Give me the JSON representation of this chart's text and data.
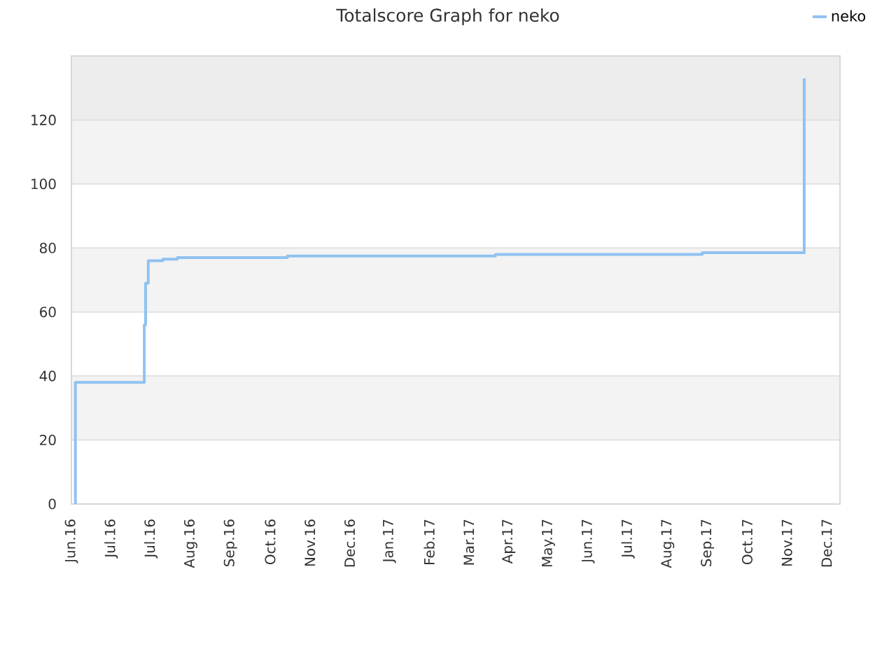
{
  "chart_data": {
    "type": "step",
    "title": "Totalscore Graph for neko",
    "x": [
      "2016-06-04",
      "2016-06-04",
      "2016-06-04",
      "2016-06-04",
      "2016-06-04",
      "2016-07-26",
      "2016-07-27",
      "2016-07-29",
      "2016-08-09",
      "2016-08-20",
      "2016-11-11",
      "2017-04-17",
      "2017-09-20",
      "2017-12-06"
    ],
    "series": [
      {
        "name": "neko",
        "color": "#90c2f0",
        "values": [
          0,
          11,
          19,
          27,
          38,
          56,
          69,
          76,
          76.5,
          77,
          77.5,
          78,
          78.5,
          133
        ]
      }
    ],
    "xlim": [
      "2016-06-01",
      "2018-01-02"
    ],
    "xticks": [
      {
        "value": "2016-06-01",
        "label": "Jun.16"
      },
      {
        "value": "2016-07-01",
        "label": "Jul.16"
      },
      {
        "value": "2016-07-31",
        "label": "Jul.16"
      },
      {
        "value": "2016-08-30",
        "label": "Aug.16"
      },
      {
        "value": "2016-09-29",
        "label": "Sep.16"
      },
      {
        "value": "2016-10-29",
        "label": "Oct.16"
      },
      {
        "value": "2016-11-28",
        "label": "Nov.16"
      },
      {
        "value": "2016-12-28",
        "label": "Dec.16"
      },
      {
        "value": "2017-01-27",
        "label": "Jan.17"
      },
      {
        "value": "2017-02-26",
        "label": "Feb.17"
      },
      {
        "value": "2017-03-28",
        "label": "Mar.17"
      },
      {
        "value": "2017-04-27",
        "label": "Apr.17"
      },
      {
        "value": "2017-05-27",
        "label": "May.17"
      },
      {
        "value": "2017-06-26",
        "label": "Jun.17"
      },
      {
        "value": "2017-07-26",
        "label": "Jul.17"
      },
      {
        "value": "2017-08-25",
        "label": "Aug.17"
      },
      {
        "value": "2017-09-24",
        "label": "Sep.17"
      },
      {
        "value": "2017-10-24",
        "label": "Oct.17"
      },
      {
        "value": "2017-11-23",
        "label": "Nov.17"
      },
      {
        "value": "2017-12-23",
        "label": "Dec.17"
      }
    ],
    "ylim": [
      0,
      140
    ],
    "yticks": [
      0,
      20,
      40,
      60,
      80,
      100,
      120
    ],
    "bands": [
      {
        "axis": "y",
        "from": 120,
        "to": 140,
        "color": "#ededed"
      }
    ],
    "grid": "y",
    "legend": "top right"
  }
}
